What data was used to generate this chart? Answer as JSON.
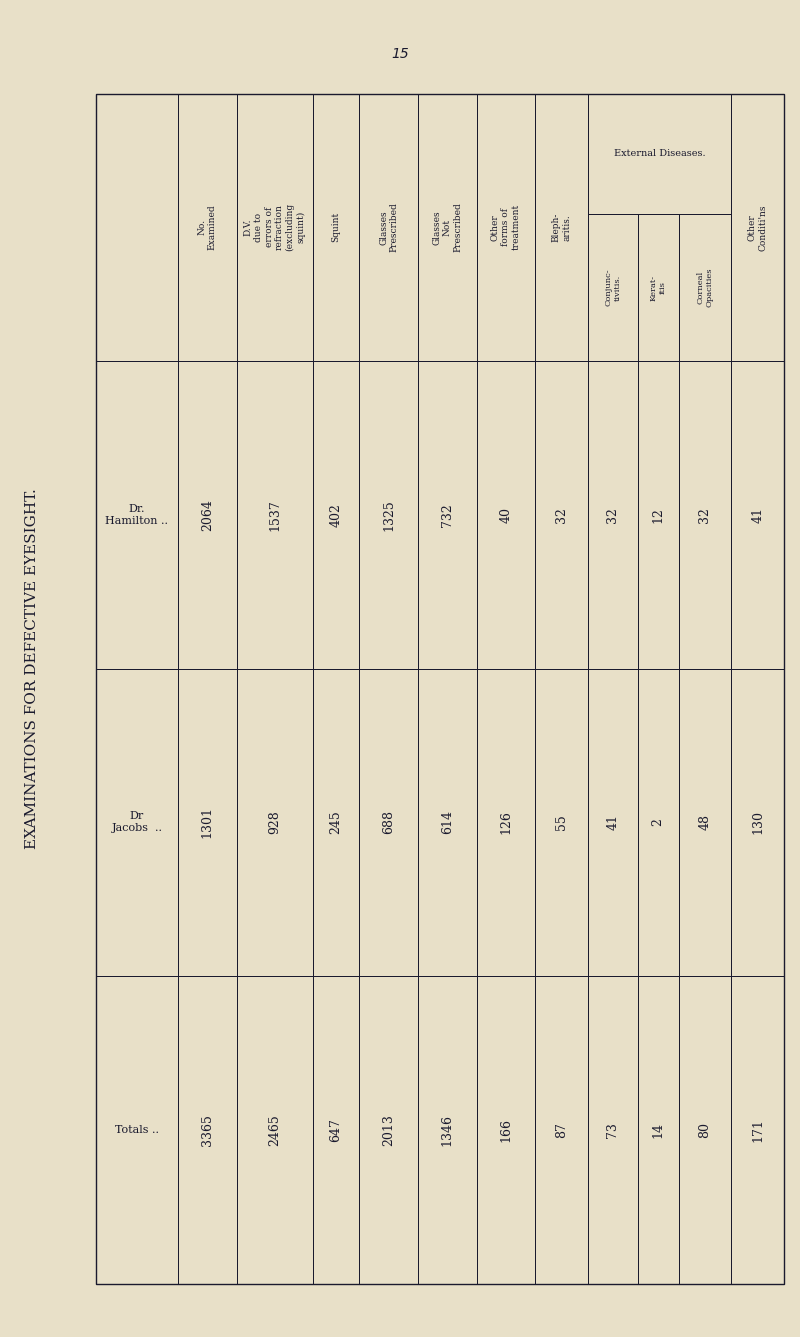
{
  "title": "EXAMINATIONS FOR DEFECTIVE EYESIGHT.",
  "page_number": "15",
  "background_color": "#e8e0c8",
  "text_color": "#1a1a2e",
  "title_fontsize": 11,
  "table_data": {
    "row_labels": [
      "Dr.\nHamilton ..",
      "Dr\nJacobs  ..",
      "Totals .."
    ],
    "col_headers_level1": [
      "",
      "No.\nExamined",
      "D.V.\ndue to\nerrors of\nrefraction\n(excluding\nsquint)",
      "Squint",
      "Glasses\nPrescribed",
      "Glasses\nNot\nPrescribed",
      "Other\nforms of\ntreatment",
      "Bleph-\naritis.",
      "External Diseases.",
      "",
      "",
      "Other\nConditi'ns"
    ],
    "col_headers_level2_external": [
      "Conjunc-\ntivitis.",
      "Kerat-\nitis",
      "Corneal\nOpacities"
    ],
    "columns": [
      {
        "header": "No.\nExamined",
        "values": [
          "2064",
          "1301",
          "3365"
        ]
      },
      {
        "header": "D.V.\ndue to\nerrors of\nrefraction\n(excluding\nsquint)",
        "values": [
          "1537",
          "928",
          "2465"
        ]
      },
      {
        "header": "Squint",
        "values": [
          "402",
          "245",
          "647"
        ]
      },
      {
        "header": "Glasses\nPrescribed",
        "values": [
          "1325",
          "688",
          "2013"
        ]
      },
      {
        "header": "Glasses\nNot\nPrescribed",
        "values": [
          "732",
          "614",
          "1346"
        ]
      },
      {
        "header": "Other\nforms of\ntreatment",
        "values": [
          "40",
          "126",
          "166"
        ]
      },
      {
        "header": "Bleph-\naritis.",
        "values": [
          "32",
          "55",
          "87"
        ]
      },
      {
        "header": "Conjunc-\ntivitis.",
        "values": [
          "32",
          "41",
          "73"
        ]
      },
      {
        "header": "Kerat-\nitis",
        "values": [
          "12",
          "2",
          "14"
        ]
      },
      {
        "header": "Corneal\nOpacities",
        "values": [
          "32",
          "48",
          "80"
        ]
      },
      {
        "header": "Other\nConditi'ns",
        "values": [
          "41",
          "130",
          "171"
        ]
      }
    ]
  }
}
